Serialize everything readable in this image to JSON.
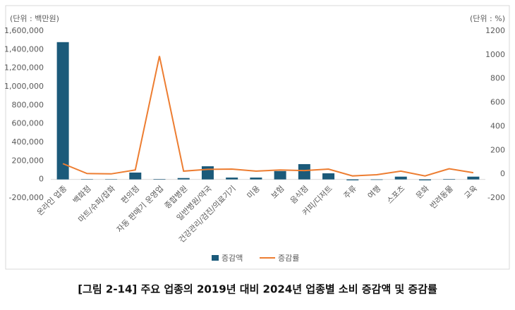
{
  "chart_data": {
    "type": "bar-line",
    "caption": "[그림 2-14] 주요 업종의 2019년 대비 2024년 업종별 소비 증감액 및 증감률",
    "y_unit_label": "(단위 : 백만원)",
    "y2_unit_label": "(단위 : %)",
    "categories": [
      "온라인 업종",
      "백화점",
      "마트/슈퍼/잡화",
      "편의점",
      "자동 판매기 운영업",
      "종합병원",
      "일반병원/약국",
      "건강관리/검진/의료기기",
      "미용",
      "보험",
      "음식점",
      "커피/디저트",
      "주류",
      "여행",
      "스포츠",
      "문화",
      "반려동물",
      "교육"
    ],
    "series": [
      {
        "name": "증감액",
        "type": "bar",
        "color": "#1b5a7a",
        "values": [
          1480000,
          2000,
          1000,
          74000,
          5000,
          15000,
          142000,
          20000,
          20000,
          90000,
          165000,
          66000,
          -10000,
          -5000,
          30000,
          -10000,
          5000,
          30000
        ]
      },
      {
        "name": "증감률",
        "type": "line",
        "axis": "y2",
        "color": "#ed7d31",
        "values": [
          88,
          5,
          2,
          35,
          990,
          25,
          40,
          42,
          25,
          35,
          30,
          42,
          -15,
          -5,
          25,
          -15,
          45,
          12
        ]
      }
    ],
    "ylim": [
      -200000,
      1600000
    ],
    "yticks": [
      {
        "value": -200000,
        "label": "-200,000"
      },
      0,
      {
        "value": 200000,
        "label": "200,000"
      },
      {
        "value": 400000,
        "label": "400,000"
      },
      {
        "value": 600000,
        "label": "600,000"
      },
      {
        "value": 800000,
        "label": "800,000"
      },
      {
        "value": 1000000,
        "label": "1,000,000"
      },
      {
        "value": 1200000,
        "label": "1,200,000"
      },
      {
        "value": 1400000,
        "label": "1,400,000"
      },
      {
        "value": 1600000,
        "label": "1,600,000"
      }
    ],
    "y2lim": [
      -200,
      1200
    ],
    "y2ticks": [
      -200,
      0,
      200,
      400,
      600,
      800,
      1000,
      1200
    ],
    "legend": "bottom"
  }
}
